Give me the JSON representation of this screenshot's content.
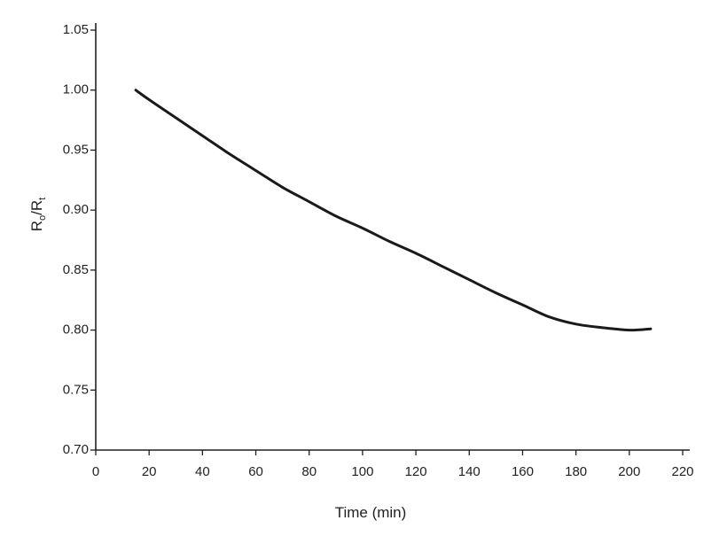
{
  "chart_data": {
    "type": "line",
    "title": "",
    "xlabel": "Time (min)",
    "ylabel": {
      "main": "R",
      "sub1": "o",
      "slash": "/R",
      "sub2": "t"
    },
    "xlim": [
      0,
      220
    ],
    "ylim": [
      0.7,
      1.05
    ],
    "xticks": [
      0,
      20,
      40,
      60,
      80,
      100,
      120,
      140,
      160,
      180,
      200,
      220
    ],
    "xtick_labels": [
      "0",
      "20",
      "40",
      "60",
      "80",
      "100",
      "120",
      "140",
      "160",
      "180",
      "200",
      "220"
    ],
    "yticks": [
      0.7,
      0.75,
      0.8,
      0.85,
      0.9,
      0.95,
      1.0,
      1.05
    ],
    "ytick_labels": [
      "0.70",
      "0.75",
      "0.80",
      "0.85",
      "0.90",
      "0.95",
      "1.00",
      "1.05"
    ],
    "grid": false,
    "series": [
      {
        "name": "Ro/Rt",
        "x": [
          15,
          20,
          30,
          40,
          50,
          60,
          70,
          80,
          90,
          100,
          110,
          120,
          130,
          140,
          150,
          160,
          170,
          180,
          190,
          200,
          208
        ],
        "y": [
          1.0,
          0.992,
          0.977,
          0.962,
          0.947,
          0.933,
          0.919,
          0.907,
          0.895,
          0.885,
          0.874,
          0.864,
          0.853,
          0.842,
          0.831,
          0.821,
          0.811,
          0.805,
          0.802,
          0.8,
          0.801
        ]
      }
    ]
  }
}
